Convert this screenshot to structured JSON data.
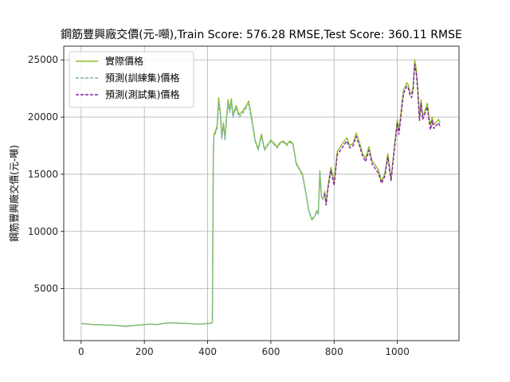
{
  "chart_data": {
    "type": "line",
    "title": "鋼筋豐興廠交價(元-噸),Train Score: 576.28 RMSE,Test Score: 360.11 RMSE",
    "xlabel": "",
    "ylabel": "鋼筋豐興廠交價(元-噸)",
    "xlim": [
      -55,
      1195
    ],
    "ylim": [
      450,
      26200
    ],
    "xticks": [
      0,
      200,
      400,
      600,
      800,
      1000
    ],
    "yticks": [
      5000,
      10000,
      15000,
      20000,
      25000
    ],
    "grid": true,
    "legend_position": "top-left",
    "series": [
      {
        "name": "實際價格",
        "color": "#8cbf26",
        "style": "solid",
        "x": [
          0,
          20,
          40,
          60,
          80,
          100,
          120,
          140,
          160,
          180,
          200,
          220,
          240,
          260,
          280,
          300,
          320,
          340,
          360,
          380,
          400,
          410,
          415,
          418,
          420,
          425,
          430,
          435,
          440,
          445,
          450,
          455,
          460,
          465,
          470,
          475,
          480,
          490,
          500,
          510,
          520,
          530,
          540,
          550,
          560,
          570,
          580,
          590,
          600,
          610,
          620,
          630,
          640,
          650,
          660,
          670,
          680,
          690,
          700,
          710,
          720,
          730,
          740,
          745,
          750,
          755,
          760,
          765,
          770,
          775,
          780,
          785,
          790,
          800,
          810,
          820,
          830,
          840,
          850,
          860,
          870,
          880,
          890,
          900,
          910,
          920,
          930,
          940,
          950,
          960,
          970,
          980,
          990,
          1000,
          1005,
          1010,
          1015,
          1020,
          1025,
          1030,
          1035,
          1040,
          1045,
          1050,
          1055,
          1060,
          1065,
          1070,
          1075,
          1080,
          1085,
          1090,
          1095,
          1100,
          1105,
          1110,
          1115,
          1120,
          1125,
          1130,
          1135
        ],
        "values": [
          1950,
          1900,
          1850,
          1850,
          1800,
          1800,
          1750,
          1700,
          1750,
          1800,
          1850,
          1900,
          1850,
          1950,
          2000,
          2000,
          1950,
          1950,
          1900,
          1900,
          1950,
          1950,
          2050,
          17000,
          18500,
          18800,
          19200,
          21700,
          20500,
          18300,
          19500,
          18200,
          20100,
          21500,
          20600,
          21600,
          20200,
          21000,
          20200,
          20500,
          20900,
          21400,
          19800,
          18000,
          17200,
          18500,
          17200,
          17600,
          18000,
          17700,
          17400,
          17800,
          17900,
          17600,
          17900,
          17700,
          16000,
          15500,
          15000,
          13500,
          11800,
          11000,
          11400,
          11800,
          11500,
          15300,
          13000,
          12800,
          13500,
          12500,
          13800,
          14800,
          15600,
          14300,
          17000,
          17400,
          17800,
          18200,
          17500,
          17700,
          18600,
          17800,
          16800,
          16400,
          17400,
          16200,
          15800,
          15400,
          14400,
          15000,
          16800,
          14600,
          17300,
          19800,
          18800,
          20000,
          21400,
          22400,
          22700,
          23000,
          22800,
          22200,
          22000,
          22700,
          25000,
          24200,
          22500,
          20000,
          21500,
          20100,
          20400,
          20800,
          21200,
          20000,
          19300,
          20000,
          19300,
          19500,
          19600,
          19800,
          19500
        ]
      },
      {
        "name": "預測(訓練集)價格",
        "color": "#79b5a6",
        "style": "dashed",
        "x": [
          0,
          20,
          40,
          60,
          80,
          100,
          120,
          140,
          160,
          180,
          200,
          220,
          240,
          260,
          280,
          300,
          320,
          340,
          360,
          380,
          400,
          410,
          415,
          418,
          420,
          425,
          430,
          435,
          440,
          445,
          450,
          455,
          460,
          465,
          470,
          475,
          480,
          490,
          500,
          510,
          520,
          530,
          540,
          550,
          560,
          570,
          580,
          590,
          600,
          610,
          620,
          630,
          640,
          650,
          660,
          670,
          680,
          690,
          700,
          710,
          720,
          730,
          740,
          745,
          750,
          755,
          760,
          765,
          770
        ],
        "values": [
          1950,
          1900,
          1850,
          1850,
          1800,
          1800,
          1750,
          1700,
          1750,
          1800,
          1850,
          1900,
          1850,
          1950,
          2000,
          2000,
          1950,
          1950,
          1900,
          1900,
          1950,
          1950,
          2050,
          16500,
          18300,
          18600,
          19000,
          21300,
          20200,
          18100,
          19300,
          18000,
          19900,
          21200,
          20400,
          21400,
          20000,
          20800,
          20000,
          20300,
          20700,
          21100,
          19600,
          17900,
          17100,
          18300,
          17100,
          17500,
          17900,
          17600,
          17300,
          17700,
          17800,
          17500,
          17800,
          17600,
          15900,
          15400,
          14900,
          13400,
          11800,
          11100,
          11400,
          11800,
          11500,
          15100,
          13000,
          12800,
          13400
        ]
      },
      {
        "name": "預測(測試集)價格",
        "color": "#8b1fa8",
        "style": "dashed",
        "x": [
          770,
          775,
          780,
          785,
          790,
          800,
          810,
          820,
          830,
          840,
          850,
          860,
          870,
          880,
          890,
          900,
          910,
          920,
          930,
          940,
          950,
          960,
          970,
          980,
          990,
          1000,
          1005,
          1010,
          1015,
          1020,
          1025,
          1030,
          1035,
          1040,
          1045,
          1050,
          1055,
          1060,
          1065,
          1070,
          1075,
          1080,
          1085,
          1090,
          1095,
          1100,
          1105,
          1110,
          1115,
          1120,
          1125,
          1130,
          1135
        ],
        "values": [
          13300,
          12300,
          13600,
          14500,
          15300,
          14000,
          16700,
          17100,
          17500,
          17900,
          17300,
          17500,
          18300,
          17500,
          16600,
          16100,
          17100,
          15900,
          15500,
          15100,
          14200,
          14800,
          16500,
          14400,
          17000,
          19500,
          18500,
          19700,
          21000,
          22100,
          22400,
          22700,
          22500,
          21900,
          21700,
          22400,
          24600,
          23800,
          22100,
          19700,
          21200,
          19800,
          20100,
          20500,
          20900,
          19700,
          18900,
          19700,
          19000,
          19200,
          19300,
          19500,
          19200
        ]
      }
    ]
  }
}
